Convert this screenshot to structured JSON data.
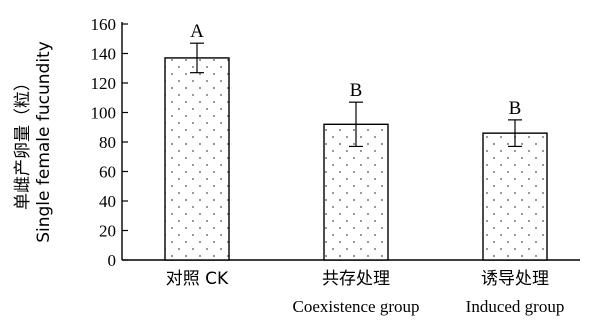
{
  "chart_data": {
    "type": "bar",
    "title": "",
    "ylabel": "单雌产卵量（粒）",
    "ylabel_en": "Single female fucundity",
    "xlabel": "",
    "ylim": [
      0,
      160
    ],
    "yticks": [
      0,
      20,
      40,
      60,
      80,
      100,
      120,
      140,
      160
    ],
    "categories": [
      {
        "label": "对照 CK",
        "sub": ""
      },
      {
        "label": "共存处理",
        "sub": "Coexistence group"
      },
      {
        "label": "诱导处理",
        "sub": "Induced group"
      }
    ],
    "values": [
      137,
      92,
      86
    ],
    "errors": [
      10,
      15,
      9
    ],
    "significance": [
      "A",
      "B",
      "B"
    ],
    "bar_fill": "#ffffff",
    "bar_pattern_dot": "#7a7a7a",
    "bar_stroke": "#000000",
    "grid": false,
    "legend": "none"
  }
}
